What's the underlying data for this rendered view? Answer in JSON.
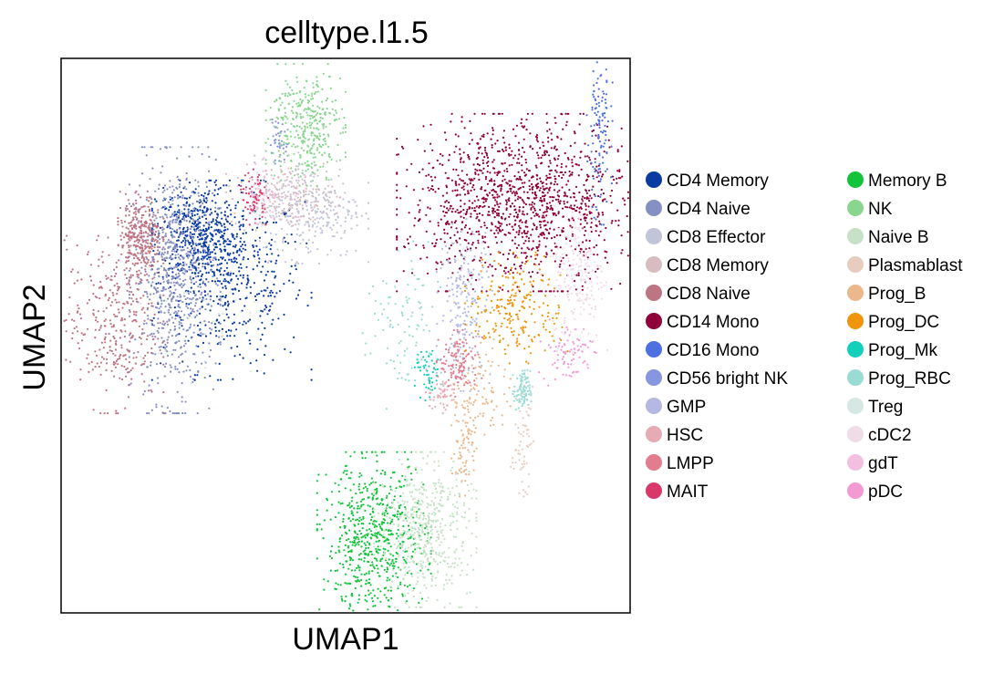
{
  "chart_data": {
    "type": "scatter",
    "title": "celltype.l1.5",
    "xlabel": "UMAP1",
    "ylabel": "UMAP2",
    "grid": false,
    "xlim": [
      0,
      100
    ],
    "ylim": [
      0,
      100
    ],
    "legend": {
      "position": "right",
      "columns": 2
    },
    "series": [
      {
        "name": "CD4 Memory",
        "color": "#0a3ba3",
        "clusters": [
          {
            "cx": 30,
            "cy": 60,
            "rx": 7,
            "ry": 9
          },
          {
            "cx": 24,
            "cy": 68,
            "rx": 4,
            "ry": 5
          }
        ],
        "n": 900
      },
      {
        "name": "CD4 Naive",
        "color": "#8690c2",
        "clusters": [
          {
            "cx": 20,
            "cy": 60,
            "rx": 4,
            "ry": 12
          }
        ],
        "n": 700
      },
      {
        "name": "CD8 Effector",
        "color": "#c2c4d8",
        "clusters": [
          {
            "cx": 44,
            "cy": 73,
            "rx": 5,
            "ry": 5
          }
        ],
        "n": 300
      },
      {
        "name": "CD8 Memory",
        "color": "#d8bcc0",
        "clusters": [
          {
            "cx": 39,
            "cy": 75,
            "rx": 5,
            "ry": 3
          }
        ],
        "n": 180
      },
      {
        "name": "CD8 Naive",
        "color": "#bd7584",
        "clusters": [
          {
            "cx": 9,
            "cy": 52,
            "rx": 4.5,
            "ry": 8
          },
          {
            "cx": 14,
            "cy": 68,
            "rx": 2,
            "ry": 4
          }
        ],
        "n": 650
      },
      {
        "name": "CD14 Mono",
        "color": "#8e0038",
        "clusters": [
          {
            "cx": 81,
            "cy": 74,
            "rx": 11,
            "ry": 8
          }
        ],
        "n": 1300
      },
      {
        "name": "CD16 Mono",
        "color": "#4e70e0",
        "clusters": [
          {
            "cx": 94.5,
            "cy": 86,
            "rx": 1.2,
            "ry": 8
          }
        ],
        "n": 120
      },
      {
        "name": "CD56 bright NK",
        "color": "#8895df",
        "clusters": [
          {
            "cx": 38,
            "cy": 85,
            "rx": 1,
            "ry": 2
          }
        ],
        "n": 40
      },
      {
        "name": "GMP",
        "color": "#b4b8e2",
        "clusters": [
          {
            "cx": 71,
            "cy": 56,
            "rx": 2.5,
            "ry": 8
          }
        ],
        "n": 200
      },
      {
        "name": "HSC",
        "color": "#e5acb5",
        "clusters": [
          {
            "cx": 67,
            "cy": 40,
            "rx": 1.5,
            "ry": 2
          }
        ],
        "n": 60
      },
      {
        "name": "LMPP",
        "color": "#e27c8e",
        "clusters": [
          {
            "cx": 70,
            "cy": 45,
            "rx": 2,
            "ry": 3
          }
        ],
        "n": 120
      },
      {
        "name": "MAIT",
        "color": "#d8396a",
        "clusters": [
          {
            "cx": 34,
            "cy": 75,
            "rx": 1.2,
            "ry": 2.5
          }
        ],
        "n": 70
      },
      {
        "name": "Memory B",
        "color": "#12c43b",
        "clusters": [
          {
            "cx": 55,
            "cy": 13,
            "rx": 5,
            "ry": 8
          }
        ],
        "n": 650
      },
      {
        "name": "NK",
        "color": "#8ad68f",
        "clusters": [
          {
            "cx": 43,
            "cy": 88,
            "rx": 3.5,
            "ry": 5.5
          }
        ],
        "n": 350
      },
      {
        "name": "Naive B",
        "color": "#c6e1c6",
        "clusters": [
          {
            "cx": 64,
            "cy": 15,
            "rx": 4.5,
            "ry": 7
          }
        ],
        "n": 500
      },
      {
        "name": "Plasmablast",
        "color": "#e8cdbf",
        "clusters": [
          {
            "cx": 81,
            "cy": 31,
            "rx": 1,
            "ry": 5
          }
        ],
        "n": 60
      },
      {
        "name": "Prog_B",
        "color": "#ebb78b",
        "clusters": [
          {
            "cx": 74,
            "cy": 40,
            "rx": 2.5,
            "ry": 5
          },
          {
            "cx": 71,
            "cy": 31,
            "rx": 1.2,
            "ry": 5
          }
        ],
        "n": 160
      },
      {
        "name": "Prog_DC",
        "color": "#ef950c",
        "clusters": [
          {
            "cx": 80,
            "cy": 55,
            "rx": 4.5,
            "ry": 5
          }
        ],
        "n": 220
      },
      {
        "name": "Prog_Mk",
        "color": "#14cfbb",
        "clusters": [
          {
            "cx": 64.5,
            "cy": 43,
            "rx": 1.2,
            "ry": 2.5
          }
        ],
        "n": 50
      },
      {
        "name": "Prog_RBC",
        "color": "#9adcd4",
        "clusters": [
          {
            "cx": 60,
            "cy": 51,
            "rx": 3.5,
            "ry": 8
          },
          {
            "cx": 81,
            "cy": 40,
            "rx": 0.8,
            "ry": 2
          }
        ],
        "n": 200
      },
      {
        "name": "Treg",
        "color": "#d5e8e4",
        "clusters": [
          {
            "cx": 26,
            "cy": 57,
            "rx": 6,
            "ry": 8
          }
        ],
        "n": 40
      },
      {
        "name": "cDC2",
        "color": "#f0dce6",
        "clusters": [
          {
            "cx": 91,
            "cy": 61,
            "rx": 2.5,
            "ry": 7
          }
        ],
        "n": 200
      },
      {
        "name": "gdT",
        "color": "#f3bfe0",
        "clusters": [
          {
            "cx": 37,
            "cy": 76,
            "rx": 3,
            "ry": 3
          }
        ],
        "n": 60
      },
      {
        "name": "pDC",
        "color": "#f39ad3",
        "clusters": [
          {
            "cx": 89,
            "cy": 47,
            "rx": 2.5,
            "ry": 3
          }
        ],
        "n": 80
      }
    ]
  }
}
